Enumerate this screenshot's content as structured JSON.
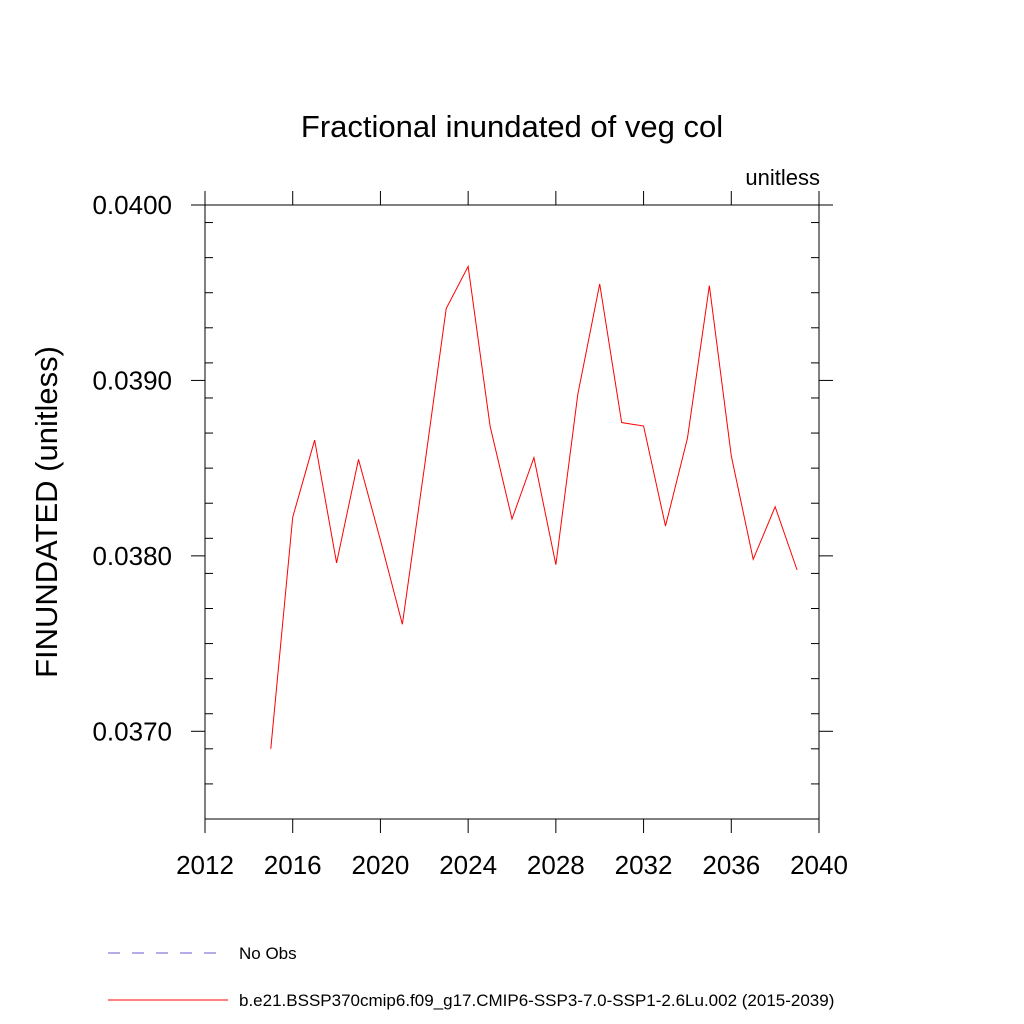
{
  "chart_data": {
    "type": "line",
    "title": "Fractional inundated of veg col",
    "units_label": "unitless",
    "ylabel": "FINUNDATED  (unitless)",
    "xlabel": "",
    "xlim": [
      2012,
      2040
    ],
    "ylim": [
      0.0365,
      0.04
    ],
    "x_ticks": [
      2012,
      2016,
      2020,
      2024,
      2028,
      2032,
      2036,
      2040
    ],
    "x_tick_labels": [
      "2012",
      "2016",
      "2020",
      "2024",
      "2028",
      "2032",
      "2036",
      "2040"
    ],
    "y_ticks": [
      0.037,
      0.038,
      0.039,
      0.04
    ],
    "y_tick_labels": [
      "0.0370",
      "0.0380",
      "0.0390",
      "0.0400"
    ],
    "series": [
      {
        "name": "b.e21.BSSP370cmip6.f09_g17.CMIP6-SSP3-7.0-SSP1-2.6Lu.002 (2015-2039)",
        "color": "#ff0000",
        "x": [
          2015,
          2016,
          2017,
          2018,
          2019,
          2020,
          2021,
          2022,
          2023,
          2024,
          2025,
          2026,
          2027,
          2028,
          2029,
          2030,
          2031,
          2032,
          2033,
          2034,
          2035,
          2036,
          2037,
          2038,
          2039
        ],
        "values": [
          0.0369,
          0.03822,
          0.03866,
          0.03796,
          0.03855,
          0.03809,
          0.03761,
          0.0385,
          0.03941,
          0.03965,
          0.03874,
          0.03821,
          0.03856,
          0.03795,
          0.03892,
          0.03955,
          0.03876,
          0.03874,
          0.03817,
          0.03867,
          0.03954,
          0.03857,
          0.03798,
          0.03828,
          0.03792
        ]
      }
    ],
    "legend": [
      {
        "label": "No Obs",
        "color": "#6a5acd",
        "style": "dashed"
      },
      {
        "label": "b.e21.BSSP370cmip6.f09_g17.CMIP6-SSP3-7.0-SSP1-2.6Lu.002 (2015-2039)",
        "color": "#ff0000",
        "style": "solid"
      }
    ]
  }
}
